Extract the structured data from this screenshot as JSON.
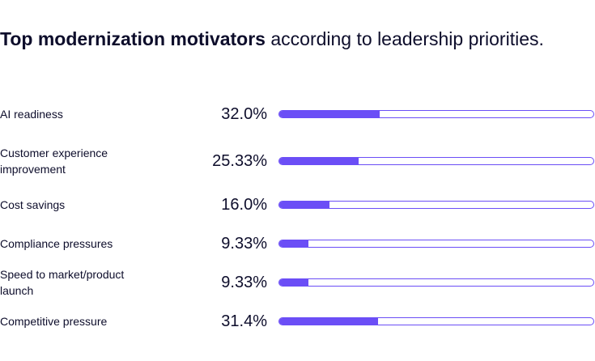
{
  "chart_data": {
    "type": "progress",
    "title_bold": "Top modernization motivators",
    "title": "according to leadership priorities.",
    "categories": [
      "AI readiness",
      "Customer experience improvement",
      "Cost savings",
      "Compliance pressures",
      "Speed to market/product launch",
      "Competitive pressure"
    ],
    "values": [
      32.0,
      25.33,
      16.0,
      9.33,
      9.33,
      31.4
    ],
    "value_labels": [
      "32.0%",
      "25.33%",
      "16.0%",
      "9.33%",
      "9.33%",
      "31.4%"
    ],
    "xlim": [
      0,
      100
    ],
    "color": "#6b4ef6"
  }
}
